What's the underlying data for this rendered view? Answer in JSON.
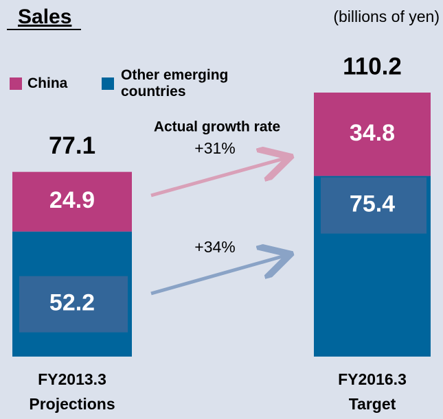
{
  "chart_data": {
    "type": "stacked-bar",
    "title": "Sales",
    "subtitle": "(billions of yen)",
    "categories": [
      "FY2013.3",
      "FY2016.3"
    ],
    "category_subtitles": [
      "Projections",
      "Target"
    ],
    "totals": [
      77.1,
      110.2
    ],
    "series": [
      {
        "name": "Other emerging countries",
        "color": "#00659c",
        "values": [
          52.2,
          75.4
        ]
      },
      {
        "name": "China",
        "color": "#b83c7e",
        "values": [
          24.9,
          34.8
        ]
      }
    ],
    "annotations": [
      "Actual growth rate",
      "+31%",
      "+34%"
    ]
  }
}
